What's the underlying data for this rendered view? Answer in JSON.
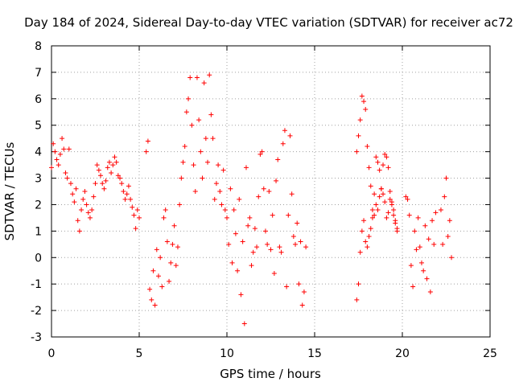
{
  "chart_data": {
    "type": "scatter",
    "title": "Day 184 of 2024, Sidereal Day-to-day VTEC variation (SDTVAR) for receiver ac72",
    "xlabel": "GPS time / hours",
    "ylabel": "SDTVAR / TECUs",
    "xlim": [
      0,
      25
    ],
    "ylim": [
      -3,
      8
    ],
    "xticks": [
      0,
      5,
      10,
      15,
      20,
      25
    ],
    "yticks": [
      -3,
      -2,
      -1,
      0,
      1,
      2,
      3,
      4,
      5,
      6,
      7,
      8
    ],
    "grid": true,
    "marker": "+",
    "color": "#ff0000",
    "series": [
      {
        "name": "SDTVAR",
        "segments": [
          {
            "x": [
              0.0,
              0.1,
              0.2,
              0.3,
              0.4,
              0.5,
              0.6,
              0.7,
              0.8,
              0.9,
              1.0,
              1.1,
              1.2,
              1.3,
              1.4,
              1.5,
              1.6,
              1.7,
              1.8,
              1.9,
              2.0,
              2.1,
              2.2,
              2.3,
              2.4,
              2.5,
              2.6,
              2.7,
              2.8,
              2.9,
              3.0,
              3.1,
              3.2,
              3.3,
              3.4,
              3.5,
              3.6,
              3.7,
              3.8,
              3.9,
              4.0,
              4.1,
              4.2,
              4.3,
              4.4,
              4.5,
              4.6,
              4.7,
              4.8,
              4.9,
              5.0
            ],
            "y": [
              3.4,
              4.3,
              4.0,
              3.7,
              3.5,
              3.9,
              4.5,
              4.1,
              3.2,
              3.0,
              4.1,
              2.8,
              2.4,
              2.1,
              2.6,
              1.4,
              1.0,
              1.8,
              2.2,
              2.5,
              2.0,
              1.7,
              1.5,
              1.8,
              2.3,
              2.8,
              3.5,
              3.3,
              3.1,
              2.8,
              2.6,
              2.9,
              3.4,
              3.6,
              3.2,
              3.5,
              3.8,
              3.6,
              3.1,
              3.0,
              2.8,
              2.5,
              2.2,
              2.4,
              2.7,
              2.2,
              1.9,
              1.6,
              1.1,
              1.8,
              1.5
            ]
          },
          {
            "x": [
              5.4,
              5.5,
              5.6,
              5.7,
              5.8,
              5.9,
              6.0,
              6.1,
              6.2,
              6.3,
              6.4,
              6.5,
              6.6,
              6.7,
              6.8,
              6.9,
              7.0,
              7.1,
              7.2,
              7.3,
              7.4,
              7.5,
              7.6,
              7.7,
              7.8,
              7.9,
              8.0,
              8.1,
              8.2,
              8.3,
              8.4,
              8.5,
              8.6,
              8.7,
              8.8,
              8.9,
              9.0,
              9.1,
              9.2,
              9.3,
              9.4,
              9.5,
              9.6,
              9.7,
              9.8,
              9.9,
              10.0,
              10.1,
              10.2,
              10.3,
              10.4,
              10.5,
              10.6,
              10.7,
              10.8,
              10.9,
              11.0,
              11.1,
              11.2,
              11.3,
              11.4,
              11.5,
              11.6,
              11.7,
              11.8,
              11.9,
              12.0,
              12.1,
              12.2,
              12.3,
              12.4,
              12.5,
              12.6,
              12.7,
              12.8,
              12.9,
              13.0,
              13.1,
              13.2,
              13.3,
              13.4,
              13.5,
              13.6,
              13.7,
              13.8,
              13.9,
              14.0,
              14.1,
              14.2,
              14.3,
              14.4,
              14.5
            ],
            "y": [
              4.0,
              4.4,
              -1.2,
              -1.6,
              -0.5,
              -1.8,
              0.3,
              -0.7,
              0.0,
              -1.1,
              1.5,
              1.8,
              0.6,
              -0.9,
              -0.2,
              0.5,
              1.2,
              -0.3,
              0.4,
              2.0,
              3.0,
              3.6,
              4.2,
              5.5,
              6.0,
              6.8,
              5.0,
              3.5,
              2.5,
              6.8,
              5.2,
              4.0,
              3.0,
              6.6,
              4.5,
              3.6,
              6.9,
              5.4,
              4.5,
              2.2,
              2.8,
              3.5,
              2.5,
              2.0,
              3.3,
              1.8,
              1.5,
              0.5,
              2.6,
              -0.2,
              1.8,
              0.9,
              -0.5,
              2.2,
              -1.4,
              0.6,
              -2.5,
              3.4,
              1.2,
              1.5,
              -0.3,
              0.2,
              1.1,
              0.4,
              2.3,
              3.9,
              4.0,
              2.6,
              1.0,
              0.5,
              2.5,
              0.3,
              1.6,
              -0.6,
              2.9,
              3.7,
              0.4,
              0.2,
              4.3,
              4.8,
              -1.1,
              1.6,
              4.6,
              2.4,
              0.8,
              0.5,
              1.3,
              -1.0,
              0.6,
              -1.8,
              -1.3,
              0.4
            ]
          },
          {
            "x": [
              17.4,
              17.5,
              17.6,
              17.7,
              17.8,
              17.9,
              18.0,
              18.1,
              18.2,
              18.3,
              18.4,
              18.5,
              18.6,
              18.7,
              18.8,
              18.9,
              19.0,
              19.1,
              19.2,
              19.3,
              19.4,
              19.5,
              19.6,
              19.7
            ],
            "y": [
              4.0,
              4.6,
              5.2,
              6.1,
              5.9,
              5.6,
              4.2,
              3.4,
              2.7,
              1.8,
              2.4,
              3.8,
              3.6,
              3.3,
              2.6,
              3.5,
              3.9,
              3.8,
              3.4,
              2.5,
              2.1,
              1.8,
              1.4,
              1.0
            ]
          },
          {
            "x": [
              17.4,
              17.5,
              17.6,
              17.7,
              17.8,
              17.9,
              18.0,
              18.1,
              18.2,
              18.3,
              18.4,
              18.5,
              18.6,
              18.7,
              18.8,
              18.9,
              19.0,
              19.1,
              19.2,
              19.3,
              19.4,
              19.5,
              19.6,
              19.7
            ],
            "y": [
              -1.6,
              -1.0,
              0.2,
              1.0,
              1.4,
              0.6,
              0.4,
              0.8,
              1.1,
              1.5,
              1.6,
              2.0,
              1.8,
              2.3,
              2.6,
              2.4,
              2.1,
              1.5,
              1.7,
              2.2,
              2.0,
              1.6,
              1.3,
              1.1
            ]
          },
          {
            "x": [
              20.2,
              20.3,
              20.4,
              20.5,
              20.6,
              20.7,
              20.8,
              20.9,
              21.0,
              21.1,
              21.2,
              21.3,
              21.4,
              21.5,
              21.6,
              21.7,
              21.8,
              21.9
            ],
            "y": [
              2.3,
              2.2,
              1.6,
              -0.3,
              -1.1,
              1.0,
              0.3,
              1.5,
              0.4,
              -0.2,
              -0.5,
              1.2,
              -0.8,
              0.7,
              -1.3,
              1.4,
              0.5,
              1.7
            ]
          },
          {
            "x": [
              22.2,
              22.3,
              22.4,
              22.5,
              22.6,
              22.7,
              22.8
            ],
            "y": [
              1.8,
              0.5,
              2.3,
              3.0,
              0.8,
              1.4,
              0.0
            ]
          }
        ]
      }
    ]
  }
}
